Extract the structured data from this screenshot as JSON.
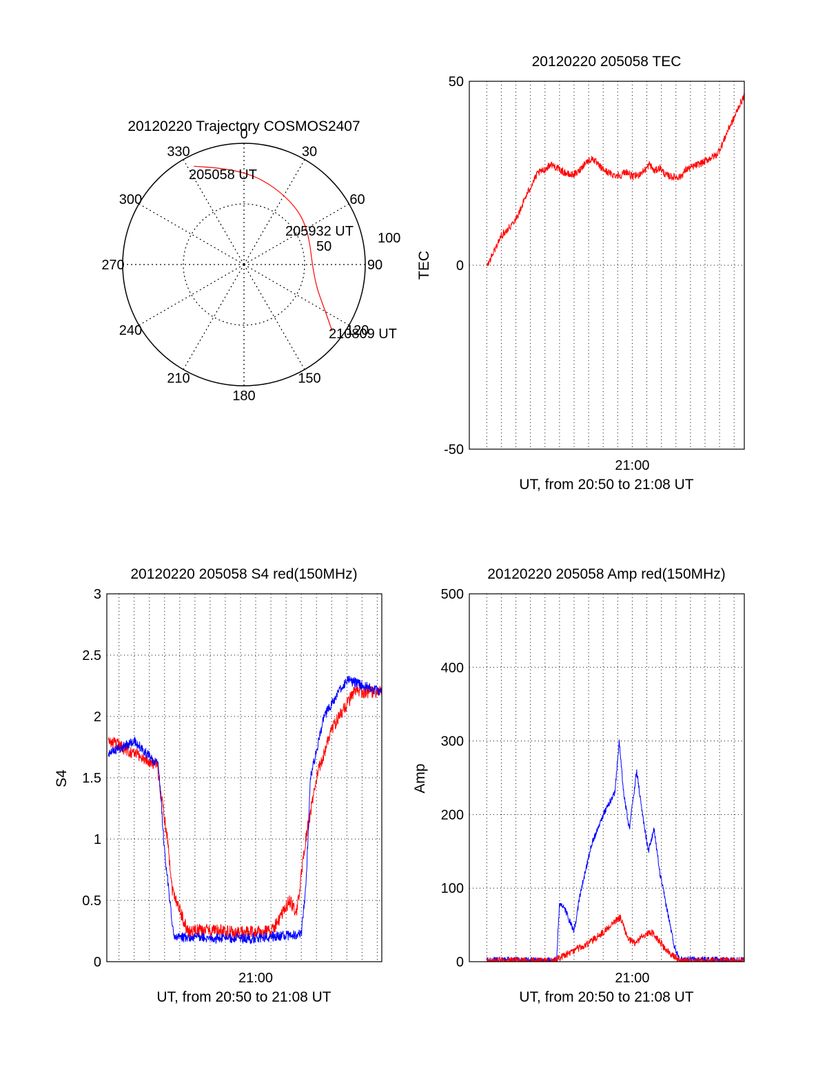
{
  "colors": {
    "red": "#ff0000",
    "blue": "#0000ff",
    "axis": "#000000",
    "grid": "#000000"
  },
  "chart_data": [
    {
      "id": "trajectory",
      "type": "polar",
      "title": "20120220 Trajectory COSMOS2407",
      "angle_labels": [
        "0",
        "30",
        "60",
        "90",
        "120",
        "150",
        "180",
        "210",
        "240",
        "270",
        "300",
        "330"
      ],
      "radius_labels": [
        "50",
        "100"
      ],
      "radius_range": [
        0,
        100
      ],
      "grid": true,
      "points": [
        {
          "label": "205058 UT",
          "azimuth": 333,
          "radius": 91
        },
        {
          "label": "205932 UT",
          "azimuth": 58,
          "radius": 60
        },
        {
          "label": "210809 UT",
          "azimuth": 127,
          "radius": 91
        }
      ],
      "track": [
        {
          "azimuth": 333,
          "radius": 91
        },
        {
          "azimuth": 346,
          "radius": 82
        },
        {
          "azimuth": 0,
          "radius": 76
        },
        {
          "azimuth": 14,
          "radius": 71
        },
        {
          "azimuth": 30,
          "radius": 66
        },
        {
          "azimuth": 45,
          "radius": 63
        },
        {
          "azimuth": 58,
          "radius": 60
        },
        {
          "azimuth": 72,
          "radius": 57
        },
        {
          "azimuth": 85,
          "radius": 56
        },
        {
          "azimuth": 97,
          "radius": 58
        },
        {
          "azimuth": 109,
          "radius": 64
        },
        {
          "azimuth": 119,
          "radius": 76
        },
        {
          "azimuth": 127,
          "radius": 91
        }
      ],
      "series_color": "red"
    },
    {
      "id": "tec",
      "type": "line",
      "title": "20120220 205058 TEC",
      "ylabel": "TEC",
      "xlabel": "UT, from 20:50 to 21:08 UT",
      "xlim": [
        -11.2,
        7.7
      ],
      "ylim": [
        -50,
        50
      ],
      "yticks": [
        "50",
        "0",
        "-50"
      ],
      "ytick_values": [
        50,
        0,
        -50
      ],
      "xticks": [
        "21:00"
      ],
      "xtick_values": [
        0
      ],
      "grid": true,
      "grid_x_minutes": [
        -10,
        -9,
        -8,
        -7,
        -6,
        -5,
        -4,
        -3,
        -2,
        -1,
        0,
        1,
        2,
        3,
        4,
        5,
        6,
        7
      ],
      "series": [
        {
          "color": "red",
          "noise": 0.5,
          "points": [
            [
              -10.0,
              -0.5
            ],
            [
              -9.6,
              3
            ],
            [
              -9.0,
              8
            ],
            [
              -8.3,
              11
            ],
            [
              -7.8,
              14
            ],
            [
              -7.4,
              18
            ],
            [
              -6.9,
              22
            ],
            [
              -6.5,
              25
            ],
            [
              -6.0,
              26
            ],
            [
              -5.6,
              27.5
            ],
            [
              -5.2,
              26.5
            ],
            [
              -4.8,
              25.5
            ],
            [
              -4.3,
              24.5
            ],
            [
              -3.8,
              25
            ],
            [
              -3.2,
              28
            ],
            [
              -2.7,
              29
            ],
            [
              -2.3,
              27
            ],
            [
              -1.8,
              25.5
            ],
            [
              -1.3,
              24.5
            ],
            [
              -0.8,
              24.5
            ],
            [
              -0.4,
              25.5
            ],
            [
              0,
              24
            ],
            [
              0.4,
              24.5
            ],
            [
              0.9,
              26
            ],
            [
              1.2,
              27.5
            ],
            [
              1.5,
              25.5
            ],
            [
              1.9,
              26.5
            ],
            [
              2.3,
              24.5
            ],
            [
              2.8,
              24
            ],
            [
              3.3,
              24
            ],
            [
              3.7,
              26
            ],
            [
              4.3,
              27
            ],
            [
              4.9,
              28
            ],
            [
              5.3,
              29
            ],
            [
              5.8,
              30
            ],
            [
              6.2,
              33
            ],
            [
              6.6,
              37
            ],
            [
              7.0,
              40
            ],
            [
              7.3,
              43
            ],
            [
              7.7,
              46
            ]
          ]
        }
      ]
    },
    {
      "id": "s4",
      "type": "line",
      "title": "20120220 205058 S4 red(150MHz)",
      "ylabel": "S4",
      "xlabel": "UT, from 20:50 to 21:08 UT",
      "xlim": [
        -9.8,
        8.3
      ],
      "ylim": [
        0,
        3
      ],
      "yticks": [
        "3",
        "2.5",
        "2",
        "1.5",
        "1",
        "0.5",
        "0"
      ],
      "ytick_values": [
        3,
        2.5,
        2,
        1.5,
        1,
        0.5,
        0
      ],
      "xticks": [
        "21:00"
      ],
      "xtick_values": [
        0
      ],
      "grid": true,
      "grid_x_minutes": [
        -9,
        -8,
        -7,
        -6,
        -5,
        -4,
        -3,
        -2,
        -1,
        0,
        1,
        2,
        3,
        4,
        5,
        6,
        7,
        8
      ],
      "series": [
        {
          "color": "red",
          "noise": 0.9,
          "points": [
            [
              -9.7,
              1.8
            ],
            [
              -8.0,
              1.7
            ],
            [
              -6.5,
              1.6
            ],
            [
              -5.8,
              1.0
            ],
            [
              -5.5,
              0.6
            ],
            [
              -4.5,
              0.25
            ],
            [
              -3.0,
              0.26
            ],
            [
              -1.5,
              0.24
            ],
            [
              0,
              0.24
            ],
            [
              1,
              0.25
            ],
            [
              1.6,
              0.35
            ],
            [
              2.2,
              0.5
            ],
            [
              2.7,
              0.4
            ],
            [
              3.3,
              1.0
            ],
            [
              4.0,
              1.5
            ],
            [
              5.0,
              1.9
            ],
            [
              6.5,
              2.2
            ],
            [
              8.3,
              2.2
            ]
          ]
        },
        {
          "color": "blue",
          "noise": 0.7,
          "points": [
            [
              -9.7,
              1.7
            ],
            [
              -8.0,
              1.8
            ],
            [
              -6.4,
              1.6
            ],
            [
              -6.0,
              0.9
            ],
            [
              -5.4,
              0.2
            ],
            [
              -4.0,
              0.2
            ],
            [
              -2.0,
              0.19
            ],
            [
              0,
              0.19
            ],
            [
              1.5,
              0.21
            ],
            [
              3.0,
              0.22
            ],
            [
              3.3,
              0.6
            ],
            [
              3.6,
              1.5
            ],
            [
              4.5,
              2.0
            ],
            [
              6.0,
              2.3
            ],
            [
              8.3,
              2.2
            ]
          ]
        }
      ]
    },
    {
      "id": "amp",
      "type": "line",
      "title": "20120220 205058 Amp red(150MHz)",
      "ylabel": "Amp",
      "xlabel": "UT, from 20:50 to 21:08 UT",
      "xlim": [
        -11.2,
        7.7
      ],
      "ylim": [
        0,
        500
      ],
      "yticks": [
        "500",
        "400",
        "300",
        "200",
        "100",
        "0"
      ],
      "ytick_values": [
        500,
        400,
        300,
        200,
        100,
        0
      ],
      "xticks": [
        "21:00"
      ],
      "xtick_values": [
        0
      ],
      "grid": true,
      "grid_x_minutes": [
        -10,
        -9,
        -8,
        -7,
        -6,
        -5,
        -4,
        -3,
        -2,
        -1,
        0,
        1,
        2,
        3,
        4,
        5,
        6,
        7
      ],
      "series": [
        {
          "color": "blue",
          "noise": 0.45,
          "points": [
            [
              -10,
              2
            ],
            [
              -5.2,
              2
            ],
            [
              -5.0,
              80
            ],
            [
              -4.6,
              70
            ],
            [
              -4.0,
              40
            ],
            [
              -3.6,
              90
            ],
            [
              -2.8,
              160
            ],
            [
              -2.0,
              200
            ],
            [
              -1.2,
              230
            ],
            [
              -0.9,
              300
            ],
            [
              -0.6,
              230
            ],
            [
              -0.2,
              180
            ],
            [
              0.3,
              260
            ],
            [
              0.7,
              200
            ],
            [
              1.1,
              150
            ],
            [
              1.5,
              180
            ],
            [
              1.9,
              120
            ],
            [
              2.3,
              80
            ],
            [
              2.9,
              20
            ],
            [
              3.3,
              3
            ],
            [
              7.7,
              2
            ]
          ]
        },
        {
          "color": "red",
          "noise": 0.5,
          "points": [
            [
              -10,
              1
            ],
            [
              -5.5,
              1
            ],
            [
              -5.0,
              5
            ],
            [
              -4.0,
              15
            ],
            [
              -3.0,
              25
            ],
            [
              -2.0,
              40
            ],
            [
              -1.2,
              55
            ],
            [
              -0.8,
              60
            ],
            [
              -0.3,
              30
            ],
            [
              0.2,
              25
            ],
            [
              0.7,
              35
            ],
            [
              1.3,
              40
            ],
            [
              1.8,
              30
            ],
            [
              2.3,
              15
            ],
            [
              2.9,
              8
            ],
            [
              3.3,
              1
            ],
            [
              7.7,
              1
            ]
          ]
        }
      ]
    }
  ]
}
